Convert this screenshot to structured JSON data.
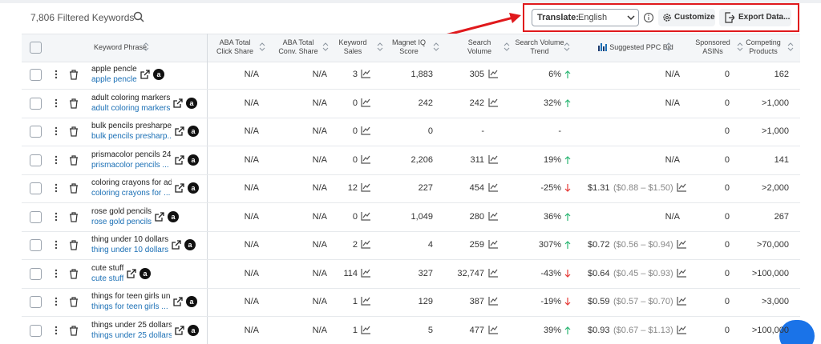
{
  "toolbar": {
    "count_label": "7,806 Filtered Keywords",
    "translate_label": "Translate:",
    "language": "English",
    "customize": "Customize",
    "export": "Export Data..."
  },
  "table": {
    "headers": {
      "keyword": [
        "Keyword Phrase"
      ],
      "click_share": [
        "ABA Total",
        "Click Share"
      ],
      "conv_share": [
        "ABA Total",
        "Conv. Share"
      ],
      "sales": [
        "Keyword",
        "Sales"
      ],
      "magnet": [
        "Magnet IQ",
        "Score"
      ],
      "volume": [
        "Search",
        "Volume"
      ],
      "trend": [
        "Search Volume",
        "Trend"
      ],
      "ppc": [
        "Suggested PPC Bid"
      ],
      "sponsored": [
        "Sponsored",
        "ASINs"
      ],
      "competing": [
        "Competing",
        "Products"
      ]
    },
    "rows": [
      {
        "keyword": "apple pencle",
        "sub": "apple pencle",
        "click_share": "N/A",
        "conv_share": "N/A",
        "sales": "3",
        "magnet": "1,883",
        "volume": "305",
        "trend": {
          "text": "6%",
          "dir": "up"
        },
        "ppc": {
          "text": "N/A"
        },
        "sponsored": "0",
        "competing": "162"
      },
      {
        "keyword": "adult coloring markers",
        "sub": "adult coloring markers",
        "click_share": "N/A",
        "conv_share": "N/A",
        "sales": "0",
        "magnet": "242",
        "volume": "242",
        "trend": {
          "text": "32%",
          "dir": "up"
        },
        "ppc": {
          "text": "N/A"
        },
        "sponsored": "0",
        "competing": ">1,000"
      },
      {
        "keyword": "bulk pencils presharpe",
        "sub": "bulk pencils presharp...",
        "click_share": "N/A",
        "conv_share": "N/A",
        "sales": "0",
        "magnet": "0",
        "volume": "-",
        "trend": {
          "text": "-",
          "dir": null
        },
        "ppc": null,
        "sponsored": "0",
        "competing": ">1,000"
      },
      {
        "keyword": "prismacolor pencils 24",
        "sub": "prismacolor pencils ...",
        "click_share": "N/A",
        "conv_share": "N/A",
        "sales": "0",
        "magnet": "2,206",
        "volume": "311",
        "trend": {
          "text": "19%",
          "dir": "up"
        },
        "ppc": {
          "text": "N/A"
        },
        "sponsored": "0",
        "competing": "141"
      },
      {
        "keyword": "coloring crayons for ad",
        "sub": "coloring crayons for ...",
        "click_share": "N/A",
        "conv_share": "N/A",
        "sales": "12",
        "magnet": "227",
        "volume": "454",
        "trend": {
          "text": "-25%",
          "dir": "down"
        },
        "ppc": {
          "text": "$1.31",
          "range": "($0.88 – $1.50)"
        },
        "sponsored": "0",
        "competing": ">2,000"
      },
      {
        "keyword": "rose gold pencils",
        "sub": "rose gold pencils",
        "click_share": "N/A",
        "conv_share": "N/A",
        "sales": "0",
        "magnet": "1,049",
        "volume": "280",
        "trend": {
          "text": "36%",
          "dir": "up"
        },
        "ppc": {
          "text": "N/A"
        },
        "sponsored": "0",
        "competing": "267"
      },
      {
        "keyword": "thing under 10 dollars",
        "sub": "thing under 10 dollars",
        "click_share": "N/A",
        "conv_share": "N/A",
        "sales": "2",
        "magnet": "4",
        "volume": "259",
        "trend": {
          "text": "307%",
          "dir": "up"
        },
        "ppc": {
          "text": "$0.72",
          "range": "($0.56 – $0.94)"
        },
        "sponsored": "0",
        "competing": ">70,000"
      },
      {
        "keyword": "cute stuff",
        "sub": "cute stuff",
        "click_share": "N/A",
        "conv_share": "N/A",
        "sales": "114",
        "magnet": "327",
        "volume": "32,747",
        "trend": {
          "text": "-43%",
          "dir": "down"
        },
        "ppc": {
          "text": "$0.64",
          "range": "($0.45 – $0.93)"
        },
        "sponsored": "0",
        "competing": ">100,000"
      },
      {
        "keyword": "things for teen girls un",
        "sub": "things for teen girls ...",
        "click_share": "N/A",
        "conv_share": "N/A",
        "sales": "1",
        "magnet": "129",
        "volume": "387",
        "trend": {
          "text": "-19%",
          "dir": "down"
        },
        "ppc": {
          "text": "$0.59",
          "range": "($0.57 – $0.70)"
        },
        "sponsored": "0",
        "competing": ">3,000"
      },
      {
        "keyword": "things under 25 dollars",
        "sub": "things under 25 dollars",
        "click_share": "N/A",
        "conv_share": "N/A",
        "sales": "1",
        "magnet": "5",
        "volume": "477",
        "trend": {
          "text": "39%",
          "dir": "up"
        },
        "ppc": {
          "text": "$0.93",
          "range": "($0.67 – $1.13)"
        },
        "sponsored": "0",
        "competing": ">100,000"
      }
    ]
  }
}
